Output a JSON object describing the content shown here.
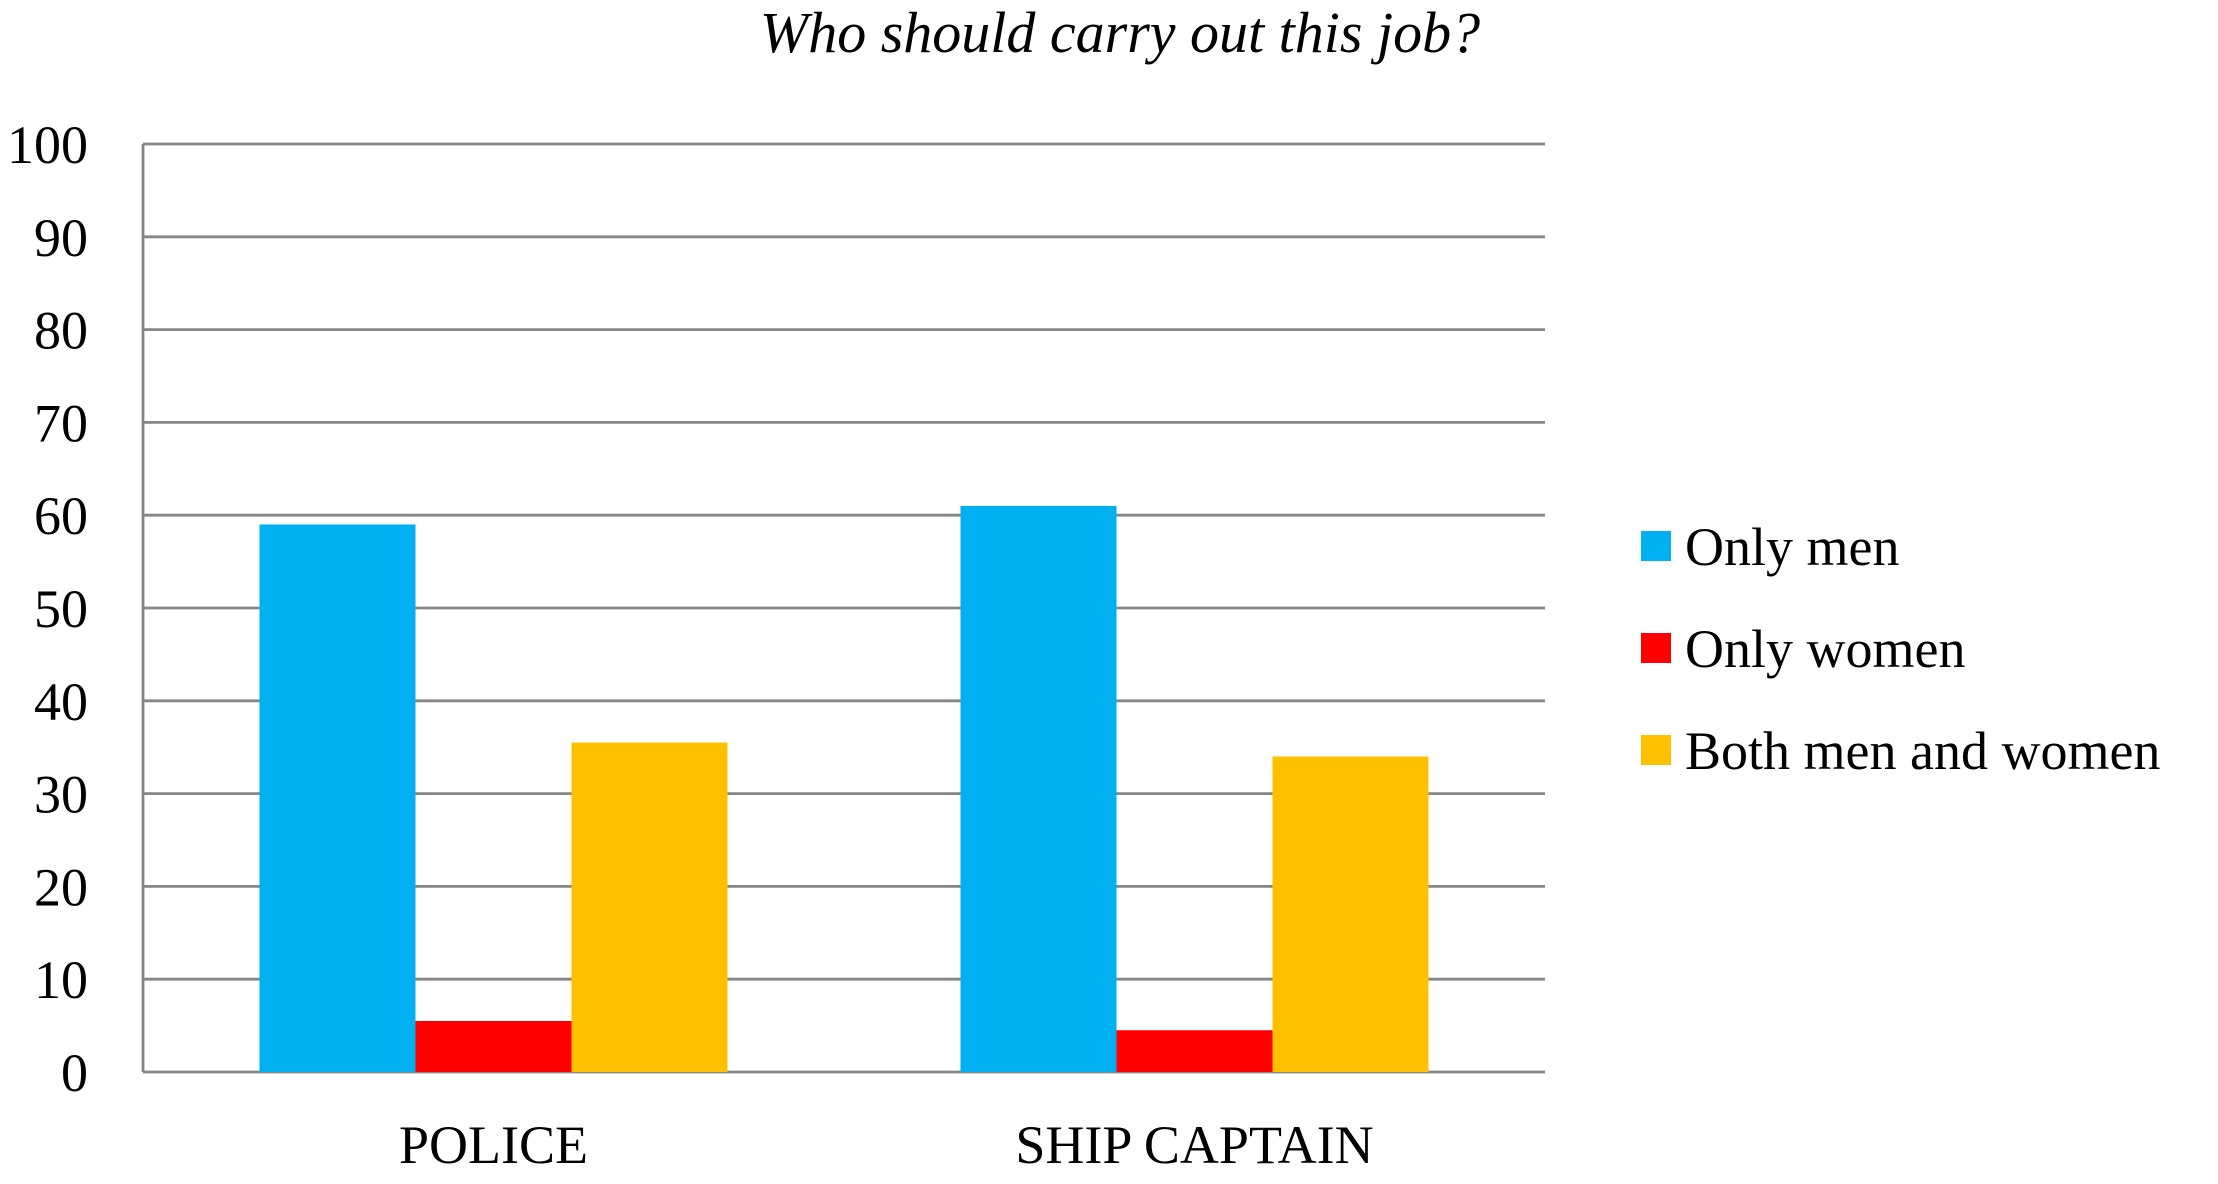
{
  "chart_data": {
    "type": "bar",
    "title": "Who should carry out this job?",
    "xlabel": "",
    "ylabel": "",
    "ylim": [
      0,
      100
    ],
    "yticks": [
      "0",
      "10",
      "20",
      "30",
      "40",
      "50",
      "60",
      "70",
      "80",
      "90",
      "100"
    ],
    "categories": [
      "POLICE",
      "SHIP CAPTAIN"
    ],
    "series": [
      {
        "name": "Only men",
        "values": [
          59,
          61
        ],
        "color": "#00b0f0"
      },
      {
        "name": "Only women",
        "values": [
          5.5,
          4.5
        ],
        "color": "#ff0000"
      },
      {
        "name": "Both men and women",
        "values": [
          35.5,
          34
        ],
        "color": "#ffc000"
      }
    ],
    "grid": true,
    "legend": "right"
  }
}
